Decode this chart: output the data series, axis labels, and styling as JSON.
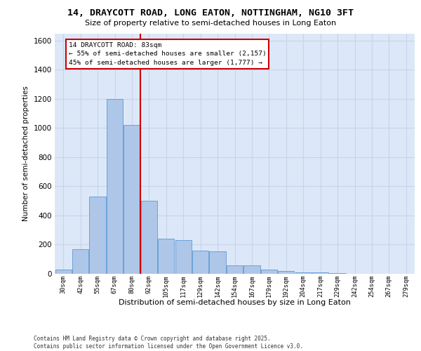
{
  "title_line1": "14, DRAYCOTT ROAD, LONG EATON, NOTTINGHAM, NG10 3FT",
  "title_line2": "Size of property relative to semi-detached houses in Long Eaton",
  "xlabel": "Distribution of semi-detached houses by size in Long Eaton",
  "ylabel": "Number of semi-detached properties",
  "categories": [
    "30sqm",
    "42sqm",
    "55sqm",
    "67sqm",
    "80sqm",
    "92sqm",
    "105sqm",
    "117sqm",
    "129sqm",
    "142sqm",
    "154sqm",
    "167sqm",
    "179sqm",
    "192sqm",
    "204sqm",
    "217sqm",
    "229sqm",
    "242sqm",
    "254sqm",
    "267sqm",
    "279sqm"
  ],
  "values": [
    30,
    170,
    530,
    1200,
    1020,
    500,
    240,
    230,
    160,
    155,
    60,
    58,
    30,
    18,
    12,
    8,
    5,
    2,
    1,
    0,
    0
  ],
  "bar_color": "#aec6e8",
  "bar_edge_color": "#5b9bd5",
  "grid_color": "#c8d4e8",
  "background_color": "#dce8f8",
  "vline_index": 4,
  "vline_color": "#cc0000",
  "annotation_title": "14 DRAYCOTT ROAD: 83sqm",
  "annotation_line1": "← 55% of semi-detached houses are smaller (2,157)",
  "annotation_line2": "45% of semi-detached houses are larger (1,777) →",
  "annotation_box_facecolor": "#ffffff",
  "annotation_box_edgecolor": "#cc0000",
  "footer_line1": "Contains HM Land Registry data © Crown copyright and database right 2025.",
  "footer_line2": "Contains public sector information licensed under the Open Government Licence v3.0.",
  "ylim_max": 1650,
  "yticks": [
    0,
    200,
    400,
    600,
    800,
    1000,
    1200,
    1400,
    1600
  ]
}
